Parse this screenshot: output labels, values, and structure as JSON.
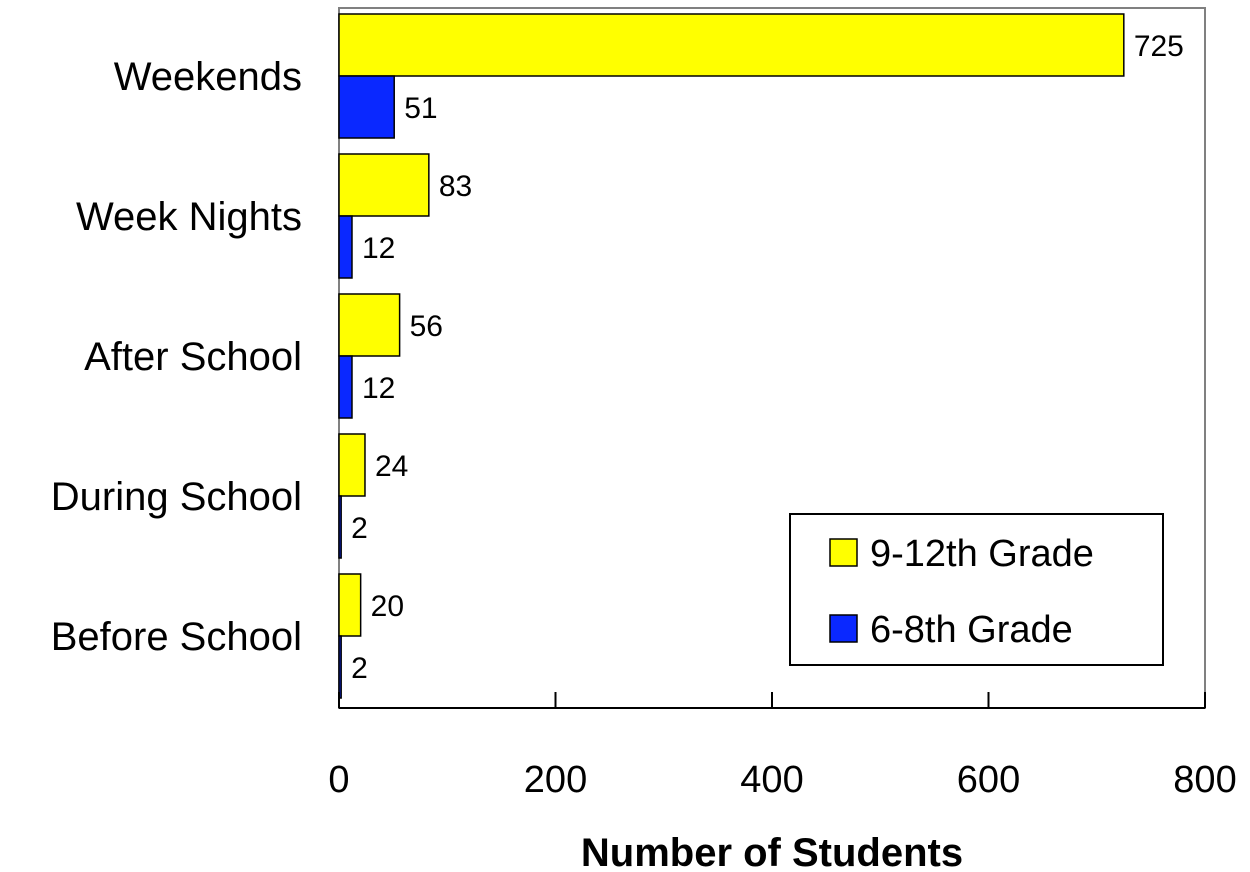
{
  "chart_data": {
    "type": "bar",
    "orientation": "horizontal",
    "categories": [
      "Weekends",
      "Week Nights",
      "After School",
      "During School",
      "Before School"
    ],
    "series": [
      {
        "name": "9-12th Grade",
        "color": "#ffff00",
        "values": [
          725,
          83,
          56,
          24,
          20
        ]
      },
      {
        "name": "6-8th Grade",
        "color": "#0a28ff",
        "values": [
          51,
          12,
          12,
          2,
          2
        ]
      }
    ],
    "xlabel": "Number of Students",
    "ylabel": "",
    "xlim": [
      0,
      800
    ],
    "xticks": [
      0,
      200,
      400,
      600,
      800
    ],
    "grid": false,
    "legend_position": "bottom-right"
  }
}
